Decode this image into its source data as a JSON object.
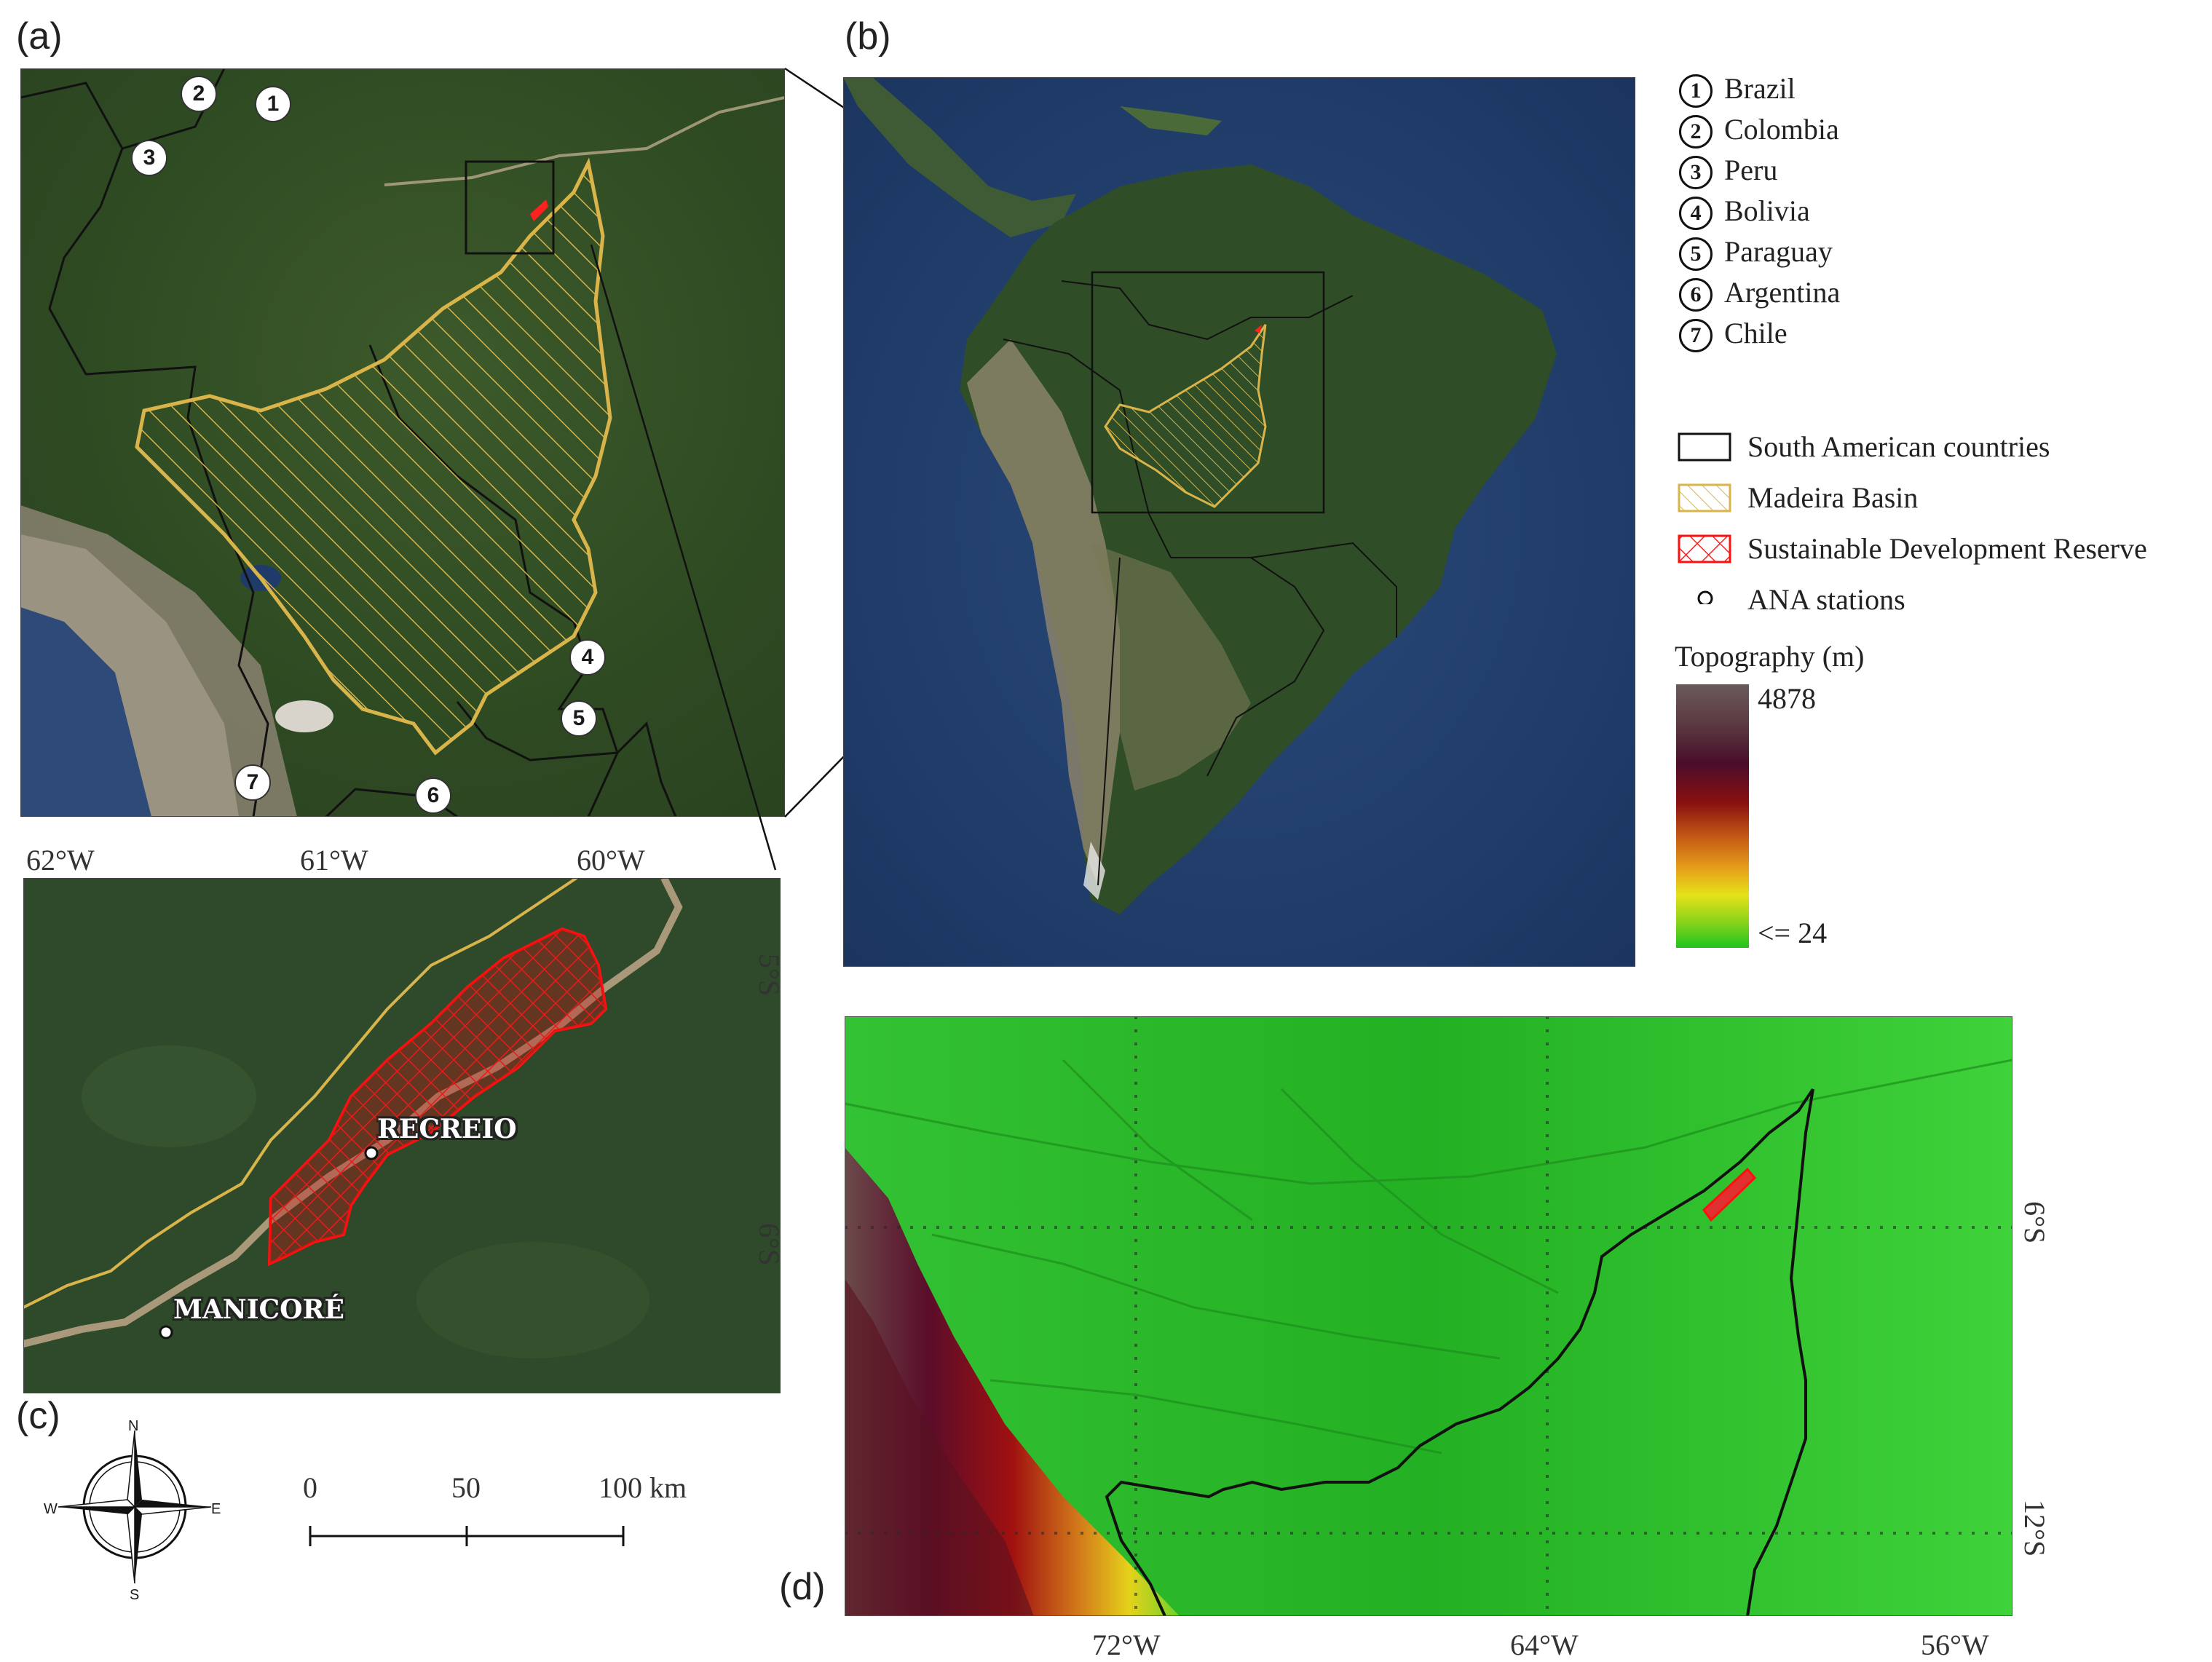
{
  "panels": {
    "a": "(a)",
    "b": "(b)",
    "c": "(c)",
    "d": "(d)"
  },
  "countries": [
    {
      "num": "1",
      "name": "Brazil"
    },
    {
      "num": "2",
      "name": "Colombia"
    },
    {
      "num": "3",
      "name": "Peru"
    },
    {
      "num": "4",
      "name": "Bolivia"
    },
    {
      "num": "5",
      "name": "Paraguay"
    },
    {
      "num": "6",
      "name": "Argentina"
    },
    {
      "num": "7",
      "name": "Chile"
    }
  ],
  "legend": {
    "countries": "South American countries",
    "basin": "Madeira Basin",
    "reserve": "Sustainable Development Reserve",
    "stations": "ANA stations",
    "topo_title": "Topography (m)",
    "topo_max": "4878",
    "topo_min": "<= 24"
  },
  "panel_c": {
    "lon_ticks": [
      "62°W",
      "61°W",
      "60°W"
    ],
    "lat_ticks": [
      "5°S",
      "6°S"
    ],
    "stations": [
      "RECREIO",
      "MANICORÉ"
    ],
    "scale_labels": [
      "0",
      "50",
      "100 km"
    ],
    "compass": {
      "n": "N",
      "s": "S",
      "e": "E",
      "w": "W"
    }
  },
  "panel_d": {
    "lon_ticks": [
      "72°W",
      "64°W",
      "56°W"
    ],
    "lat_ticks": [
      "6°S",
      "12°S"
    ]
  },
  "colors": {
    "basin": "#d9b44a",
    "reserve": "#e01010",
    "border": "#111111"
  }
}
